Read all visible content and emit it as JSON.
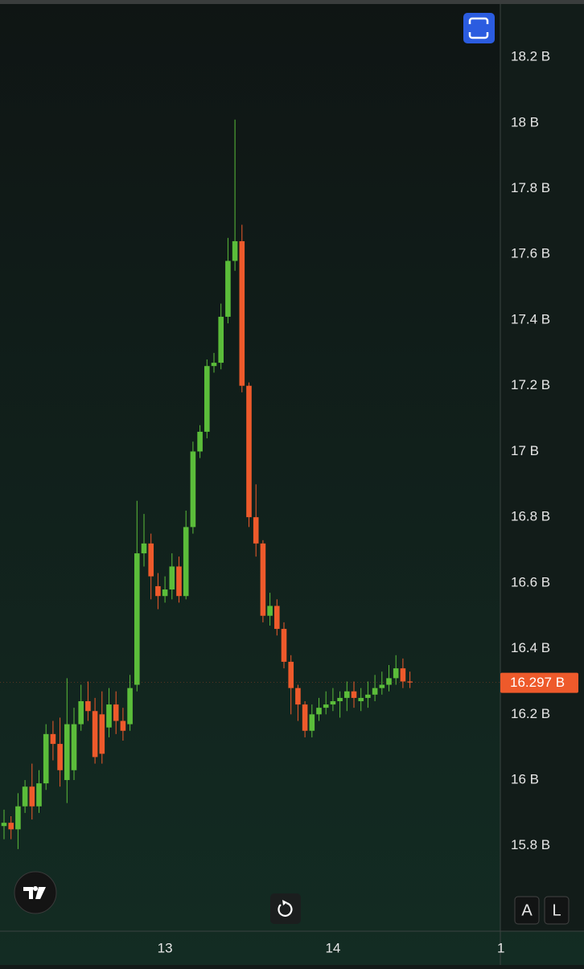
{
  "chart_data": {
    "type": "candlestick",
    "categories": [
      null,
      null,
      null,
      null,
      null,
      null,
      null,
      null,
      null,
      null,
      null,
      null,
      null,
      null,
      null,
      null,
      null,
      null,
      null,
      null,
      null,
      null,
      null,
      "13",
      null,
      null,
      null,
      null,
      null,
      null,
      null,
      null,
      null,
      null,
      null,
      null,
      null,
      null,
      null,
      null,
      null,
      null,
      null,
      null,
      null,
      null,
      null,
      "14",
      null,
      null,
      null,
      null,
      null,
      null,
      null,
      null,
      null,
      null,
      null,
      null,
      null,
      null,
      null,
      null,
      null,
      null,
      null,
      null,
      null,
      null,
      null,
      "1"
    ],
    "open": [
      15.86,
      15.87,
      15.85,
      15.92,
      15.98,
      15.92,
      15.99,
      16.14,
      16.11,
      16.0,
      16.03,
      16.17,
      16.24,
      16.21,
      16.2,
      16.16,
      16.23,
      16.18,
      16.17,
      16.29,
      16.69,
      16.72,
      16.59,
      16.56,
      16.58,
      16.65,
      16.56,
      16.77,
      17.0,
      17.06,
      17.26,
      17.27,
      17.41,
      17.58,
      17.64,
      17.2,
      16.8,
      16.72,
      16.5,
      16.53,
      16.46,
      16.36,
      16.28,
      16.23,
      16.15,
      16.2,
      16.22,
      16.23,
      16.24,
      16.25,
      16.27,
      16.24,
      16.25,
      16.26,
      16.28,
      16.29,
      16.31,
      16.34,
      16.3,
      null,
      null,
      null,
      null,
      null,
      null,
      null,
      null,
      null,
      null,
      null,
      null,
      null
    ],
    "high": [
      15.91,
      15.89,
      15.96,
      16.0,
      16.05,
      16.03,
      16.17,
      16.18,
      16.19,
      16.31,
      16.22,
      16.29,
      16.3,
      16.25,
      16.27,
      16.28,
      16.27,
      16.22,
      16.32,
      16.85,
      16.81,
      16.75,
      16.63,
      16.62,
      16.69,
      16.68,
      16.82,
      17.03,
      17.08,
      17.28,
      17.3,
      17.45,
      17.65,
      18.01,
      17.69,
      17.21,
      16.9,
      16.73,
      16.57,
      16.55,
      16.48,
      16.38,
      16.29,
      16.24,
      16.23,
      16.25,
      16.27,
      16.28,
      16.27,
      16.3,
      16.3,
      16.28,
      16.3,
      16.32,
      16.33,
      16.35,
      16.38,
      16.37,
      16.33,
      null,
      null,
      null,
      null,
      null,
      null,
      null,
      null,
      null,
      null,
      null,
      null,
      null
    ],
    "low": [
      15.82,
      15.82,
      15.79,
      15.9,
      15.88,
      15.9,
      15.97,
      16.06,
      15.98,
      15.93,
      16.0,
      16.15,
      16.18,
      16.05,
      16.05,
      16.13,
      16.14,
      16.12,
      16.15,
      16.27,
      16.65,
      16.55,
      16.52,
      16.54,
      16.55,
      16.54,
      16.55,
      16.75,
      16.98,
      17.04,
      17.24,
      17.25,
      17.39,
      17.55,
      17.18,
      16.77,
      16.68,
      16.48,
      16.47,
      16.44,
      16.34,
      16.2,
      16.18,
      16.13,
      16.13,
      16.18,
      16.2,
      16.21,
      16.19,
      16.21,
      16.22,
      16.21,
      16.22,
      16.24,
      16.26,
      16.27,
      16.29,
      16.28,
      16.28,
      null,
      null,
      null,
      null,
      null,
      null,
      null,
      null,
      null,
      null,
      null,
      null,
      null
    ],
    "close": [
      15.87,
      15.85,
      15.92,
      15.98,
      15.92,
      15.99,
      16.14,
      16.11,
      16.03,
      16.17,
      16.17,
      16.24,
      16.21,
      16.07,
      16.08,
      16.23,
      16.18,
      16.15,
      16.28,
      16.69,
      16.72,
      16.62,
      16.56,
      16.58,
      16.65,
      16.56,
      16.77,
      17.0,
      17.06,
      17.26,
      17.27,
      17.41,
      17.58,
      17.64,
      17.2,
      16.8,
      16.72,
      16.5,
      16.53,
      16.46,
      16.36,
      16.28,
      16.23,
      16.15,
      16.2,
      16.22,
      16.23,
      16.24,
      16.25,
      16.27,
      16.25,
      16.25,
      16.26,
      16.28,
      16.29,
      16.31,
      16.34,
      16.3,
      16.297,
      null,
      null,
      null,
      null,
      null,
      null,
      null,
      null,
      null,
      null,
      null,
      null,
      null
    ],
    "up_color": "#5bbd3a",
    "down_color": "#ee5a2b",
    "ylim": [
      15.54,
      18.374
    ],
    "yticks": [
      {
        "value": 15.8,
        "label": "15.8 B"
      },
      {
        "value": 16.0,
        "label": "16 B"
      },
      {
        "value": 16.2,
        "label": "16.2 B"
      },
      {
        "value": 16.4,
        "label": "16.4 B"
      },
      {
        "value": 16.6,
        "label": "16.6 B"
      },
      {
        "value": 16.8,
        "label": "16.8 B"
      },
      {
        "value": 17.0,
        "label": "17 B"
      },
      {
        "value": 17.2,
        "label": "17.2 B"
      },
      {
        "value": 17.4,
        "label": "17.4 B"
      },
      {
        "value": 17.6,
        "label": "17.6 B"
      },
      {
        "value": 17.8,
        "label": "17.8 B"
      },
      {
        "value": 18.0,
        "label": "18 B"
      },
      {
        "value": 18.2,
        "label": "18.2 B"
      }
    ],
    "last_price": {
      "value": 16.297,
      "label": "16.297 B"
    },
    "grid": false,
    "scale_buttons": [
      "A",
      "L"
    ]
  }
}
